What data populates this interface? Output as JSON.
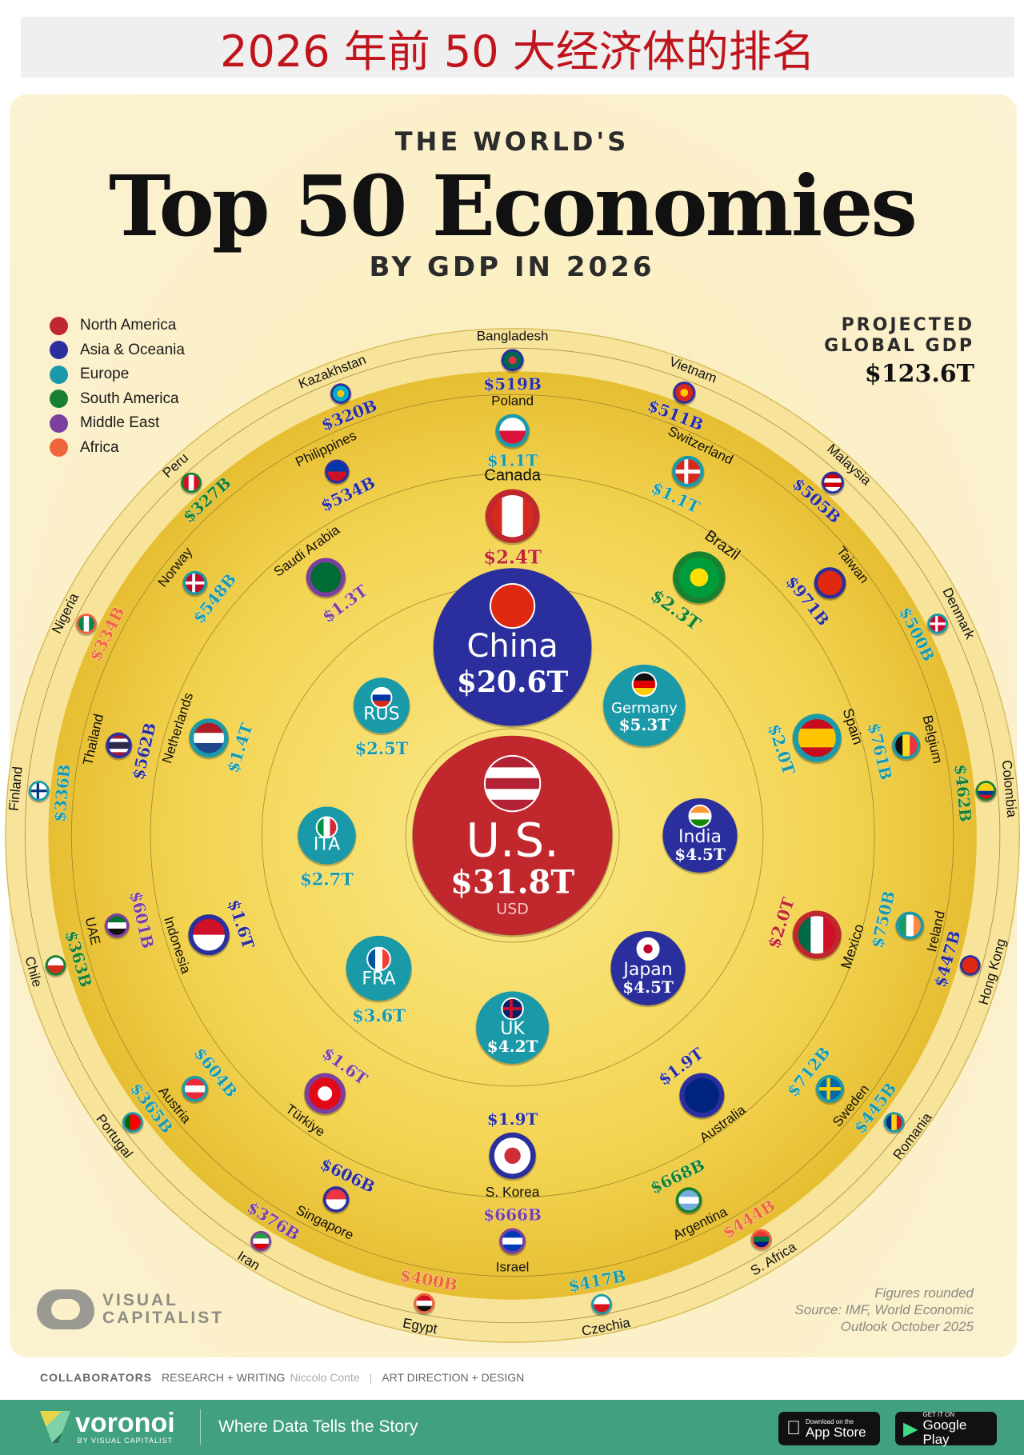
{
  "banner": {
    "title": "2026 年前 50 大经济体的排名"
  },
  "header": {
    "kicker": "THE WORLD'S",
    "title": "Top 50 Economies",
    "subtitle": "BY GDP IN 2026"
  },
  "projected": {
    "line1": "PROJECTED",
    "line2": "GLOBAL GDP",
    "value": "$123.6T"
  },
  "legend": [
    {
      "region": "North America",
      "color": "#c0282d"
    },
    {
      "region": "Asia & Oceania",
      "color": "#2b2f9e"
    },
    {
      "region": "Europe",
      "color": "#1a9aa8"
    },
    {
      "region": "South America",
      "color": "#17812f"
    },
    {
      "region": "Middle East",
      "color": "#7b3fa0"
    },
    {
      "region": "Africa",
      "color": "#f0643c"
    }
  ],
  "chart_data": {
    "type": "bubble-radial",
    "title": "Top 50 Economies",
    "unit": "USD",
    "countries": [
      {
        "name": "U.S.",
        "label": "U.S.",
        "value": "$31.8T",
        "gdp_trillion": 31.8,
        "region": "North America",
        "unit": "USD"
      },
      {
        "name": "China",
        "label": "China",
        "value": "$20.6T",
        "gdp_trillion": 20.6,
        "region": "Asia & Oceania"
      },
      {
        "name": "Germany",
        "label": "Germany",
        "value": "$5.3T",
        "gdp_trillion": 5.3,
        "region": "Europe"
      },
      {
        "name": "India",
        "label": "India",
        "value": "$4.5T",
        "gdp_trillion": 4.5,
        "region": "Asia & Oceania"
      },
      {
        "name": "Japan",
        "label": "Japan",
        "value": "$4.5T",
        "gdp_trillion": 4.5,
        "region": "Asia & Oceania"
      },
      {
        "name": "UK",
        "label": "UK",
        "value": "$4.2T",
        "gdp_trillion": 4.2,
        "region": "Europe"
      },
      {
        "name": "France",
        "label": "FRA",
        "value": "$3.6T",
        "gdp_trillion": 3.6,
        "region": "Europe"
      },
      {
        "name": "Italy",
        "label": "ITA",
        "value": "$2.7T",
        "gdp_trillion": 2.7,
        "region": "Europe"
      },
      {
        "name": "Russia",
        "label": "RUS",
        "value": "$2.5T",
        "gdp_trillion": 2.5,
        "region": "Europe"
      },
      {
        "name": "Canada",
        "value": "$2.4T",
        "gdp_trillion": 2.4,
        "region": "North America"
      },
      {
        "name": "Brazil",
        "value": "$2.3T",
        "gdp_trillion": 2.3,
        "region": "South America"
      },
      {
        "name": "Spain",
        "value": "$2.0T",
        "gdp_trillion": 2.0,
        "region": "Europe"
      },
      {
        "name": "Mexico",
        "value": "$2.0T",
        "gdp_trillion": 2.0,
        "region": "North America"
      },
      {
        "name": "Australia",
        "value": "$1.9T",
        "gdp_trillion": 1.9,
        "region": "Asia & Oceania"
      },
      {
        "name": "S. Korea",
        "value": "$1.9T",
        "gdp_trillion": 1.9,
        "region": "Asia & Oceania"
      },
      {
        "name": "Türkiye",
        "value": "$1.6T",
        "gdp_trillion": 1.6,
        "region": "Middle East"
      },
      {
        "name": "Indonesia",
        "value": "$1.6T",
        "gdp_trillion": 1.6,
        "region": "Asia & Oceania"
      },
      {
        "name": "Netherlands",
        "value": "$1.4T",
        "gdp_trillion": 1.4,
        "region": "Europe"
      },
      {
        "name": "Saudi Arabia",
        "value": "$1.3T",
        "gdp_trillion": 1.3,
        "region": "Middle East"
      },
      {
        "name": "Poland",
        "value": "$1.1T",
        "gdp_trillion": 1.1,
        "region": "Europe"
      },
      {
        "name": "Switzerland",
        "value": "$1.1T",
        "gdp_trillion": 1.1,
        "region": "Europe"
      },
      {
        "name": "Taiwan",
        "value": "$971B",
        "gdp_trillion": 0.971,
        "region": "Asia & Oceania"
      },
      {
        "name": "Belgium",
        "value": "$761B",
        "gdp_trillion": 0.761,
        "region": "Europe"
      },
      {
        "name": "Ireland",
        "value": "$750B",
        "gdp_trillion": 0.75,
        "region": "Europe"
      },
      {
        "name": "Sweden",
        "value": "$712B",
        "gdp_trillion": 0.712,
        "region": "Europe"
      },
      {
        "name": "Argentina",
        "value": "$668B",
        "gdp_trillion": 0.668,
        "region": "South America"
      },
      {
        "name": "Israel",
        "value": "$666B",
        "gdp_trillion": 0.666,
        "region": "Middle East"
      },
      {
        "name": "Singapore",
        "value": "$606B",
        "gdp_trillion": 0.606,
        "region": "Asia & Oceania"
      },
      {
        "name": "Austria",
        "value": "$604B",
        "gdp_trillion": 0.604,
        "region": "Europe"
      },
      {
        "name": "UAE",
        "value": "$601B",
        "gdp_trillion": 0.601,
        "region": "Middle East"
      },
      {
        "name": "Thailand",
        "value": "$562B",
        "gdp_trillion": 0.562,
        "region": "Asia & Oceania"
      },
      {
        "name": "Norway",
        "value": "$548B",
        "gdp_trillion": 0.548,
        "region": "Europe"
      },
      {
        "name": "Philippines",
        "value": "$534B",
        "gdp_trillion": 0.534,
        "region": "Asia & Oceania"
      },
      {
        "name": "Bangladesh",
        "value": "$519B",
        "gdp_trillion": 0.519,
        "region": "Asia & Oceania"
      },
      {
        "name": "Vietnam",
        "value": "$511B",
        "gdp_trillion": 0.511,
        "region": "Asia & Oceania"
      },
      {
        "name": "Malaysia",
        "value": "$505B",
        "gdp_trillion": 0.505,
        "region": "Asia & Oceania"
      },
      {
        "name": "Denmark",
        "value": "$500B",
        "gdp_trillion": 0.5,
        "region": "Europe"
      },
      {
        "name": "Colombia",
        "value": "$462B",
        "gdp_trillion": 0.462,
        "region": "South America"
      },
      {
        "name": "Hong Kong",
        "value": "$447B",
        "gdp_trillion": 0.447,
        "region": "Asia & Oceania"
      },
      {
        "name": "Romania",
        "value": "$445B",
        "gdp_trillion": 0.445,
        "region": "Europe"
      },
      {
        "name": "S. Africa",
        "value": "$444B",
        "gdp_trillion": 0.444,
        "region": "Africa"
      },
      {
        "name": "Czechia",
        "value": "$417B",
        "gdp_trillion": 0.417,
        "region": "Europe"
      },
      {
        "name": "Egypt",
        "value": "$400B",
        "gdp_trillion": 0.4,
        "region": "Africa"
      },
      {
        "name": "Iran",
        "value": "$376B",
        "gdp_trillion": 0.376,
        "region": "Middle East"
      },
      {
        "name": "Portugal",
        "value": "$365B",
        "gdp_trillion": 0.365,
        "region": "Europe"
      },
      {
        "name": "Chile",
        "value": "$363B",
        "gdp_trillion": 0.363,
        "region": "South America"
      },
      {
        "name": "Finland",
        "value": "$336B",
        "gdp_trillion": 0.336,
        "region": "Europe"
      },
      {
        "name": "Nigeria",
        "value": "$334B",
        "gdp_trillion": 0.334,
        "region": "Africa"
      },
      {
        "name": "Peru",
        "value": "$327B",
        "gdp_trillion": 0.327,
        "region": "South America"
      },
      {
        "name": "Kazakhstan",
        "value": "$320B",
        "gdp_trillion": 0.32,
        "region": "Asia & Oceania"
      }
    ]
  },
  "source": {
    "line1": "Figures rounded",
    "line2": "Source: IMF, World Economic",
    "line3": "Outlook October 2025"
  },
  "brand": {
    "vc_line1": "VISUAL",
    "vc_line2": "CAPITALIST"
  },
  "collaborators": {
    "label": "COLLABORATORS",
    "role1": "RESEARCH + WRITING",
    "name1": "Niccolo Conte",
    "sep": "|",
    "role2": "ART DIRECTION + DESIGN"
  },
  "footer": {
    "logo": "voronoi",
    "logo_sub": "BY VISUAL CAPITALIST",
    "tagline": "Where Data Tells the Story",
    "appstore_small": "Download on the",
    "appstore_big": "App Store",
    "googleplay_small": "GET IT ON",
    "googleplay_big": "Google Play"
  }
}
